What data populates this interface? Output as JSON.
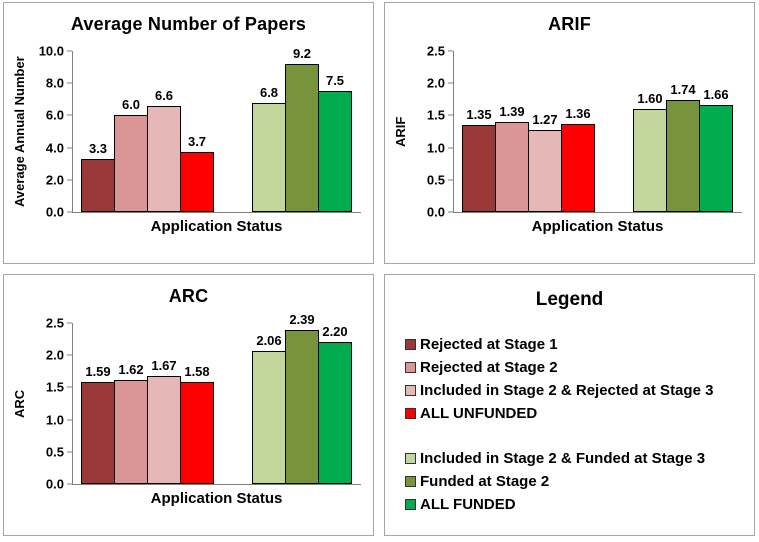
{
  "colors": {
    "series": [
      "#9A3937",
      "#D99694",
      "#E5B8B7",
      "#FE0000",
      "#C3D69B",
      "#77933C",
      "#00AC4E"
    ],
    "panel_border": "#A6A6A6",
    "axis_line": "#808080",
    "text": "#000000"
  },
  "legend": {
    "title": "Legend",
    "groups": [
      {
        "items": [
          {
            "label": "Rejected at Stage 1",
            "color": "#9A3937"
          },
          {
            "label": "Rejected at Stage 2",
            "color": "#D99694"
          },
          {
            "label": "Included in Stage 2 & Rejected at Stage 3",
            "color": "#E5B8B7"
          },
          {
            "label": "ALL UNFUNDED",
            "color": "#FE0000"
          }
        ]
      },
      {
        "items": [
          {
            "label": "Included in Stage 2 & Funded at Stage 3",
            "color": "#C3D69B"
          },
          {
            "label": "Funded at Stage 2",
            "color": "#77933C"
          },
          {
            "label": "ALL FUNDED",
            "color": "#00AC4E"
          }
        ]
      }
    ]
  },
  "chart_data": [
    {
      "type": "bar",
      "title": "Average Number of Papers",
      "xlabel": "Application Status",
      "ylabel": "Average Annual Number",
      "ylim": [
        0,
        10
      ],
      "ytick_labels": [
        "10.0",
        "8.0",
        "6.0",
        "4.0",
        "2.0",
        "0.0"
      ],
      "grid": false,
      "legend_position": "separate-panel",
      "group_split": 4,
      "categories": [
        "Rejected at Stage 1",
        "Rejected at Stage 2",
        "Included in Stage 2 & Rejected at Stage 3",
        "ALL UNFUNDED",
        "Included in Stage 2 & Funded at Stage 3",
        "Funded at Stage 2",
        "ALL FUNDED"
      ],
      "values": [
        3.3,
        6.0,
        6.6,
        3.7,
        6.8,
        9.2,
        7.5
      ],
      "value_labels": [
        "3.3",
        "6.0",
        "6.6",
        "3.7",
        "6.8",
        "9.2",
        "7.5"
      ]
    },
    {
      "type": "bar",
      "title": "ARIF",
      "xlabel": "Application Status",
      "ylabel": "ARIF",
      "ylim": [
        0,
        2.5
      ],
      "ytick_labels": [
        "2.5",
        "2.0",
        "1.5",
        "1.0",
        "0.5",
        "0.0"
      ],
      "grid": false,
      "legend_position": "separate-panel",
      "group_split": 4,
      "categories": [
        "Rejected at Stage 1",
        "Rejected at Stage 2",
        "Included in Stage 2 & Rejected at Stage 3",
        "ALL UNFUNDED",
        "Included in Stage 2 & Funded at Stage 3",
        "Funded at Stage 2",
        "ALL FUNDED"
      ],
      "values": [
        1.35,
        1.39,
        1.27,
        1.36,
        1.6,
        1.74,
        1.66
      ],
      "value_labels": [
        "1.35",
        "1.39",
        "1.27",
        "1.36",
        "1.60",
        "1.74",
        "1.66"
      ]
    },
    {
      "type": "bar",
      "title": "ARC",
      "xlabel": "Application Status",
      "ylabel": "ARC",
      "ylim": [
        0,
        2.5
      ],
      "ytick_labels": [
        "2.5",
        "2.0",
        "1.5",
        "1.0",
        "0.5",
        "0.0"
      ],
      "grid": false,
      "legend_position": "separate-panel",
      "group_split": 4,
      "categories": [
        "Rejected at Stage 1",
        "Rejected at Stage 2",
        "Included in Stage 2 & Rejected at Stage 3",
        "ALL UNFUNDED",
        "Included in Stage 2 & Funded at Stage 3",
        "Funded at Stage 2",
        "ALL FUNDED"
      ],
      "values": [
        1.59,
        1.62,
        1.67,
        1.58,
        2.06,
        2.39,
        2.2
      ],
      "value_labels": [
        "1.59",
        "1.62",
        "1.67",
        "1.58",
        "2.06",
        "2.39",
        "2.20"
      ]
    }
  ]
}
